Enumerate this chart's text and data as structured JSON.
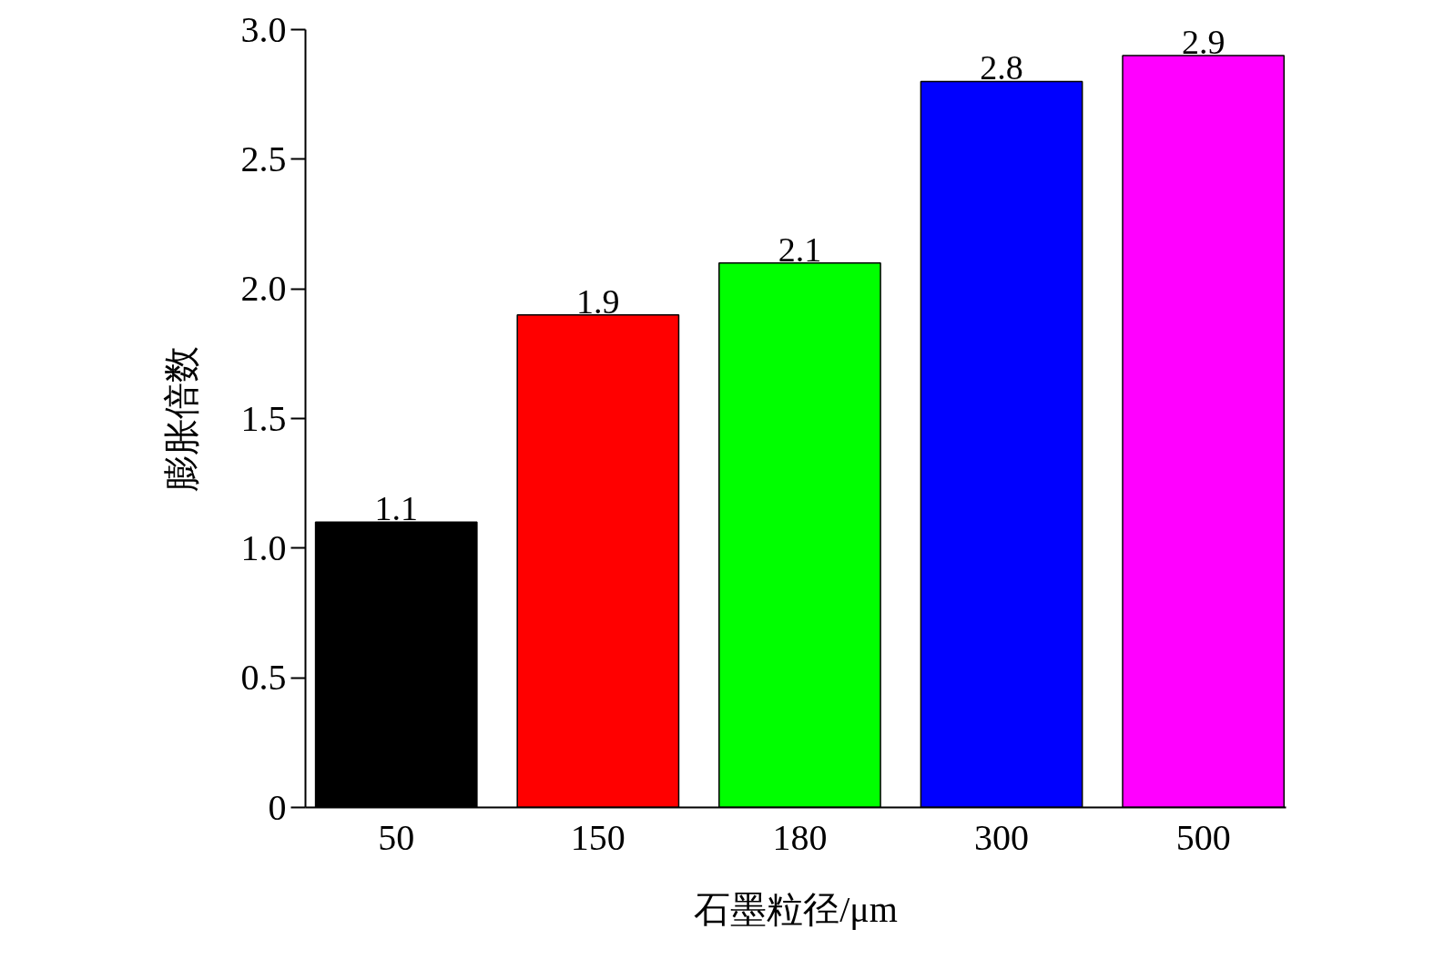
{
  "chart_data": {
    "type": "bar",
    "xlabel": "石墨粒径/μm",
    "ylabel": "膨胀倍数",
    "categories": [
      "50",
      "150",
      "180",
      "300",
      "500"
    ],
    "values": [
      1.1,
      1.9,
      2.1,
      2.8,
      2.9
    ],
    "colors": [
      "#000000",
      "#ff0000",
      "#00ff00",
      "#0000ff",
      "#ff00ff"
    ],
    "ylim": [
      0,
      3.0
    ],
    "yticks": [
      {
        "value": 0,
        "label": "0"
      },
      {
        "value": 0.5,
        "label": "0.5"
      },
      {
        "value": 1.0,
        "label": "1.0"
      },
      {
        "value": 1.5,
        "label": "1.5"
      },
      {
        "value": 2.0,
        "label": "2.0"
      },
      {
        "value": 2.5,
        "label": "2.5"
      },
      {
        "value": 3.0,
        "label": "3.0"
      }
    ],
    "grid": false,
    "data_labels": true
  }
}
